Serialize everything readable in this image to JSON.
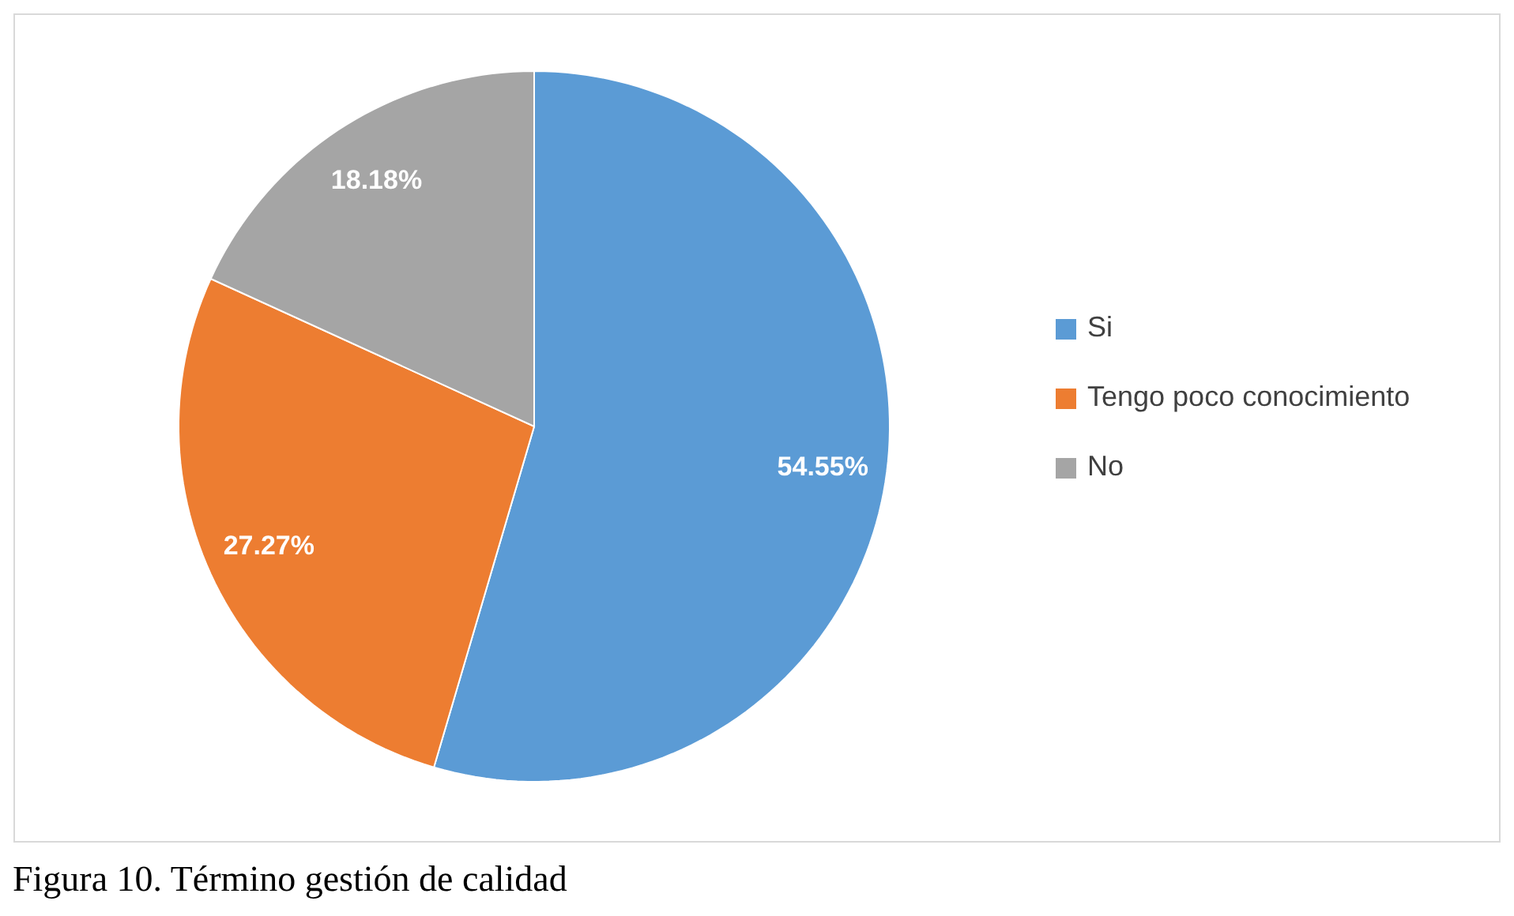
{
  "chart_data": {
    "type": "pie",
    "title": "Figura 10. Término gestión de calidad",
    "categories": [
      "Si",
      "Tengo poco conocimiento",
      "No"
    ],
    "values": [
      54.55,
      27.27,
      18.18
    ],
    "colors": [
      "#5b9bd5",
      "#ed7d31",
      "#a5a5a5"
    ],
    "value_labels": [
      "54.55%",
      "27.27%",
      "18.18%"
    ],
    "legend": "right"
  }
}
